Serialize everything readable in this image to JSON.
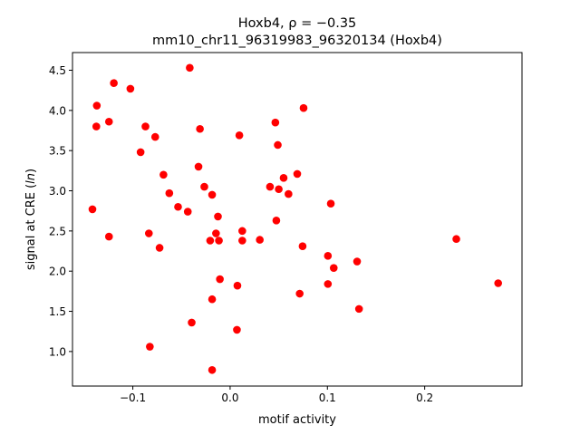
{
  "chart_data": {
    "type": "scatter",
    "title_line1": "Hoxb4, ρ = −0.35",
    "title_line2": "mm10_chr11_96319983_96320134 (Hoxb4)",
    "xlabel": "motif activity",
    "ylabel": "signal at CRE (ln)",
    "xlim": [
      -0.162,
      0.3
    ],
    "ylim": [
      0.57,
      4.72
    ],
    "xticks": [
      -0.1,
      0.0,
      0.1,
      0.2
    ],
    "xtick_labels": [
      "−0.1",
      "0.0",
      "0.1",
      "0.2"
    ],
    "yticks": [
      1.0,
      1.5,
      2.0,
      2.5,
      3.0,
      3.5,
      4.0,
      4.5
    ],
    "ytick_labels": [
      "1.0",
      "1.5",
      "2.0",
      "2.5",
      "3.0",
      "3.5",
      "4.0",
      "4.5"
    ],
    "grid": false,
    "marker_color": "#ff0000",
    "points": [
      {
        "x": -0.1415,
        "y": 2.77
      },
      {
        "x": -0.137,
        "y": 4.06
      },
      {
        "x": -0.1375,
        "y": 3.8
      },
      {
        "x": -0.1245,
        "y": 3.86
      },
      {
        "x": -0.1245,
        "y": 2.43
      },
      {
        "x": -0.1195,
        "y": 4.34
      },
      {
        "x": -0.1025,
        "y": 4.27
      },
      {
        "x": -0.092,
        "y": 3.48
      },
      {
        "x": -0.087,
        "y": 3.8
      },
      {
        "x": -0.0835,
        "y": 2.47
      },
      {
        "x": -0.0825,
        "y": 1.06
      },
      {
        "x": -0.077,
        "y": 3.67
      },
      {
        "x": -0.0725,
        "y": 2.29
      },
      {
        "x": -0.0685,
        "y": 3.2
      },
      {
        "x": -0.0625,
        "y": 2.97
      },
      {
        "x": -0.0535,
        "y": 2.8
      },
      {
        "x": -0.0435,
        "y": 2.74
      },
      {
        "x": -0.0415,
        "y": 4.53
      },
      {
        "x": -0.0395,
        "y": 1.36
      },
      {
        "x": -0.0325,
        "y": 3.3
      },
      {
        "x": -0.031,
        "y": 3.77
      },
      {
        "x": -0.0265,
        "y": 3.05
      },
      {
        "x": -0.0205,
        "y": 2.38
      },
      {
        "x": -0.0185,
        "y": 2.95
      },
      {
        "x": -0.0185,
        "y": 1.65
      },
      {
        "x": -0.0185,
        "y": 0.77
      },
      {
        "x": -0.0145,
        "y": 2.47
      },
      {
        "x": -0.0125,
        "y": 2.68
      },
      {
        "x": -0.0115,
        "y": 2.38
      },
      {
        "x": -0.0105,
        "y": 1.9
      },
      {
        "x": 0.007,
        "y": 1.27
      },
      {
        "x": 0.0075,
        "y": 1.82
      },
      {
        "x": 0.0095,
        "y": 3.69
      },
      {
        "x": 0.0125,
        "y": 2.5
      },
      {
        "x": 0.0125,
        "y": 2.38
      },
      {
        "x": 0.0305,
        "y": 2.39
      },
      {
        "x": 0.041,
        "y": 3.05
      },
      {
        "x": 0.0465,
        "y": 3.85
      },
      {
        "x": 0.0475,
        "y": 2.63
      },
      {
        "x": 0.049,
        "y": 3.57
      },
      {
        "x": 0.05,
        "y": 3.02
      },
      {
        "x": 0.055,
        "y": 3.16
      },
      {
        "x": 0.06,
        "y": 2.96
      },
      {
        "x": 0.069,
        "y": 3.21
      },
      {
        "x": 0.0715,
        "y": 1.72
      },
      {
        "x": 0.0745,
        "y": 2.31
      },
      {
        "x": 0.0755,
        "y": 4.03
      },
      {
        "x": 0.1005,
        "y": 1.84
      },
      {
        "x": 0.1005,
        "y": 2.19
      },
      {
        "x": 0.1035,
        "y": 2.84
      },
      {
        "x": 0.1065,
        "y": 2.04
      },
      {
        "x": 0.1305,
        "y": 2.12
      },
      {
        "x": 0.1325,
        "y": 1.53
      },
      {
        "x": 0.2325,
        "y": 2.4
      },
      {
        "x": 0.2755,
        "y": 1.85
      }
    ]
  }
}
